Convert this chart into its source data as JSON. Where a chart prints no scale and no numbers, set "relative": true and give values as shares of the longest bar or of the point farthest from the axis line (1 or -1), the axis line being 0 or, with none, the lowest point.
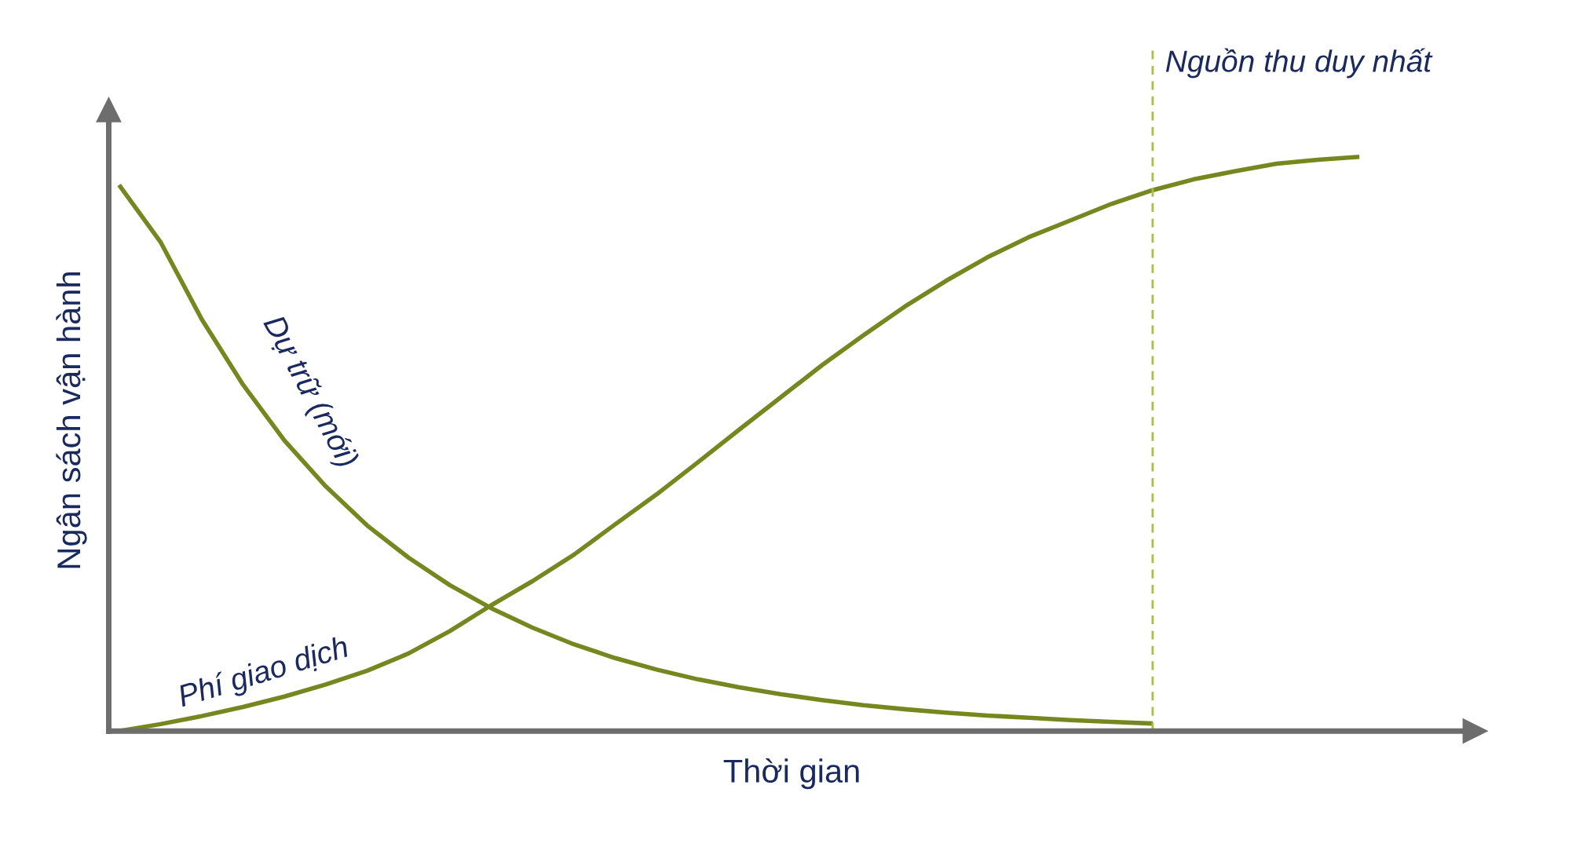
{
  "chart_data": {
    "type": "line",
    "relative": true,
    "xlabel": "Thời gian",
    "ylabel": "Ngân sách vận hành",
    "categories": [
      null,
      null,
      null,
      null,
      null,
      null,
      null,
      null,
      null,
      null,
      null,
      null,
      null,
      null,
      null,
      null,
      null,
      null,
      null,
      null,
      null,
      null,
      null,
      null,
      null,
      null,
      null,
      null,
      null,
      null,
      null
    ],
    "series": [
      {
        "name": "Dự trữ (mới)",
        "color": "#76871f",
        "values": [
          0.951,
          0.852,
          0.717,
          0.603,
          0.506,
          0.426,
          0.358,
          0.302,
          0.254,
          0.214,
          0.18,
          0.151,
          0.127,
          0.107,
          0.09,
          0.076,
          0.064,
          0.054,
          0.045,
          0.038,
          0.032,
          0.027,
          0.023,
          0.019,
          0.016,
          0.013,
          null,
          null,
          null,
          null,
          null
        ]
      },
      {
        "name": "Phí giao dịch",
        "color": "#76871f",
        "values": [
          0,
          0.012,
          0.026,
          0.042,
          0.06,
          0.081,
          0.105,
          0.135,
          0.174,
          0.219,
          0.261,
          0.307,
          0.36,
          0.412,
          0.468,
          0.525,
          0.581,
          0.637,
          0.689,
          0.739,
          0.784,
          0.825,
          0.86,
          0.889,
          0.918,
          0.942,
          0.961,
          0.975,
          0.988,
          0.995,
          1
        ]
      }
    ],
    "ref_lines": [
      {
        "axis": "x",
        "label": "Nguồn thu duy nhất",
        "color": "#a8c040",
        "line_style": "dashed"
      }
    ],
    "legend": false,
    "marker": "none",
    "line_style": "solid"
  }
}
